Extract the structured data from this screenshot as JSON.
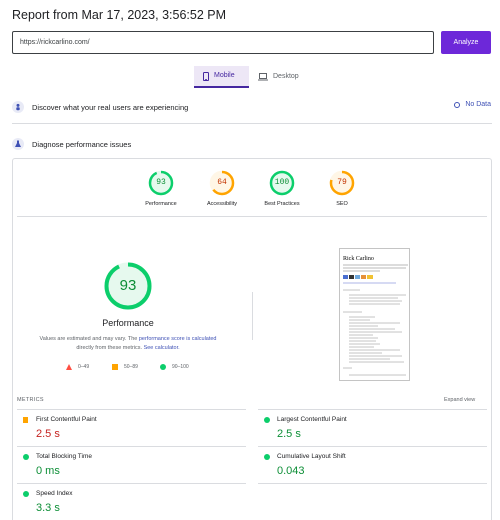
{
  "report": {
    "title": "Report from Mar 17, 2023, 3:56:52 PM"
  },
  "url_bar": {
    "value": "https://rickcarlino.com/",
    "analyze_label": "Analyze"
  },
  "tabs": [
    {
      "label": "Mobile",
      "icon": "phone-icon",
      "selected": true
    },
    {
      "label": "Desktop",
      "icon": "laptop-icon",
      "selected": false
    }
  ],
  "field_data": {
    "title": "Discover what your real users are experiencing",
    "status": "No Data"
  },
  "diagnose": {
    "title": "Diagnose performance issues"
  },
  "category_scores": [
    {
      "label": "Performance",
      "score": "93",
      "value": 93,
      "color": "#0cce6b"
    },
    {
      "label": "Accessibility",
      "score": "64",
      "value": 64,
      "color": "#ffa400"
    },
    {
      "label": "Best Practices",
      "score": "100",
      "value": 100,
      "color": "#0cce6b"
    },
    {
      "label": "SEO",
      "score": "79",
      "value": 79,
      "color": "#ffa400"
    }
  ],
  "main_score": {
    "score": "93",
    "value": 93,
    "label": "Performance",
    "note_prefix": "Values are estimated and may vary. The ",
    "note_link1": "performance score is calculated",
    "note_mid": "directly from these metrics. ",
    "note_link2": "See calculator."
  },
  "legend": [
    {
      "range": "0–49",
      "color": "#ff4e42",
      "shape": "triangle"
    },
    {
      "range": "50–89",
      "color": "#ffa400",
      "shape": "square"
    },
    {
      "range": "90–100",
      "color": "#0cce6b",
      "shape": "circle"
    }
  ],
  "thumbnail": {
    "heading": "Rick Carlino"
  },
  "metrics": {
    "heading": "METRICS",
    "expand_label": "Expand view",
    "items": [
      {
        "name": "First Contentful Paint",
        "value": "2.5 s",
        "status": "average"
      },
      {
        "name": "Largest Contentful Paint",
        "value": "2.5 s",
        "status": "good"
      },
      {
        "name": "Total Blocking Time",
        "value": "0 ms",
        "status": "good"
      },
      {
        "name": "Cumulative Layout Shift",
        "value": "0.043",
        "status": "good"
      },
      {
        "name": "Speed Index",
        "value": "3.3 s",
        "status": "good"
      }
    ]
  },
  "colors": {
    "accent": "#6d28d9",
    "good": "#0cce6b",
    "average": "#ffa400",
    "poor": "#ff4e42",
    "link": "#3f51b5"
  }
}
